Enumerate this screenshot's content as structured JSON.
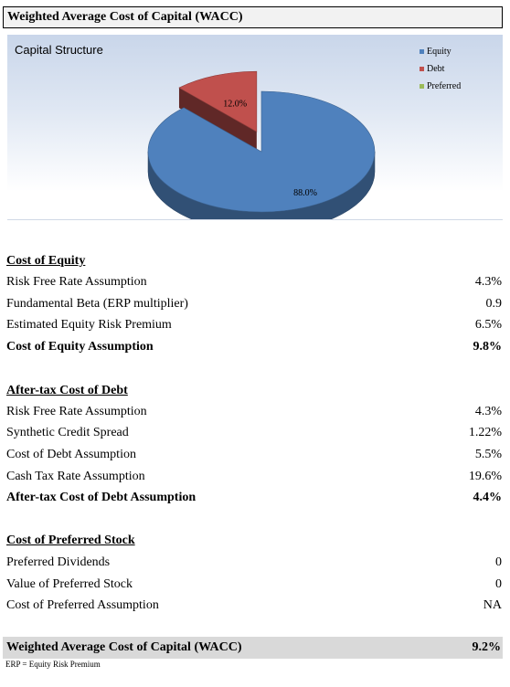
{
  "header": {
    "title": "Weighted Average Cost of Capital (WACC)"
  },
  "chart_data": {
    "type": "pie",
    "title": "Capital Structure",
    "categories": [
      "Equity",
      "Debt",
      "Preferred"
    ],
    "values": [
      88.0,
      12.0,
      0.0
    ],
    "data_labels": [
      "88.0%",
      "12.0%",
      ""
    ],
    "colors": [
      "#4f81bd",
      "#c0504d",
      "#9bbb59"
    ],
    "legend_position": "top-right"
  },
  "equity": {
    "title": "Cost of Equity",
    "rows": [
      {
        "label": "Risk Free Rate Assumption",
        "value": "4.3%"
      },
      {
        "label": "Fundamental Beta (ERP multiplier)",
        "value": "0.9"
      },
      {
        "label": "Estimated Equity Risk Premium",
        "value": "6.5%"
      },
      {
        "label": "Cost of Equity Assumption",
        "value": "9.8%"
      }
    ]
  },
  "debt": {
    "title": "After-tax Cost of Debt",
    "rows": [
      {
        "label": "Risk Free Rate Assumption",
        "value": "4.3%"
      },
      {
        "label": "Synthetic Credit Spread",
        "value": "1.22%"
      },
      {
        "label": "Cost of Debt Assumption",
        "value": "5.5%"
      },
      {
        "label": "Cash Tax Rate Assumption",
        "value": "19.6%"
      },
      {
        "label": "After-tax Cost of Debt Assumption",
        "value": "4.4%"
      }
    ]
  },
  "preferred": {
    "title": "Cost of Preferred Stock",
    "rows": [
      {
        "label": "Preferred Dividends",
        "value": "0"
      },
      {
        "label": "Value of Preferred Stock",
        "value": "0"
      },
      {
        "label": "Cost of Preferred Assumption",
        "value": "NA"
      }
    ]
  },
  "total": {
    "label": "Weighted Average Cost of Capital (WACC)",
    "value": "9.2%"
  },
  "footnote": "ERP = Equity Risk Premium"
}
